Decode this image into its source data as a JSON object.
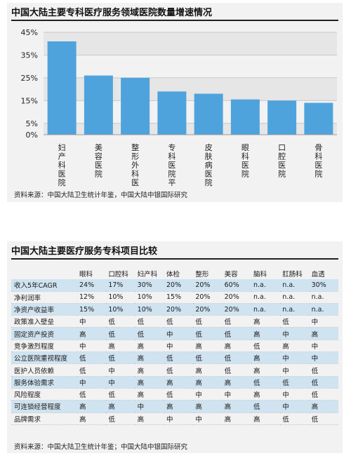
{
  "chart_section": {
    "title": "中国大陆主要专科医疗服务领域医院数量增速情况",
    "source": "资料来源：中国大陆卫生统计年鉴，中国大陆中银国际研究"
  },
  "chart_data": {
    "type": "bar",
    "title": "中国大陆主要专科医疗服务领域医院数量增速情况",
    "categories": [
      "妇产科医院",
      "美容医院",
      "整形外科医院",
      "专科医院平均",
      "皮肤病医院",
      "眼科医院",
      "口腔医院",
      "骨科医院"
    ],
    "values": [
      41,
      26,
      25,
      19,
      18,
      15.5,
      15,
      14
    ],
    "ylim": [
      0,
      45
    ],
    "yticks": [
      0,
      5,
      15,
      25,
      35,
      45
    ],
    "ytick_labels": [
      "0%",
      "5%",
      "15%",
      "25%",
      "35%",
      "45%"
    ],
    "xlabel": "",
    "ylabel": "",
    "bar_color": "#4fa3dd",
    "band_color": "#e6e6e6"
  },
  "table_section": {
    "title": "中国大陆主要医疗服务专科项目比较",
    "source": "资料来源：中国大陆卫生统计年鉴；中国大陆中银国际研究",
    "columns": [
      "眼科",
      "口腔科",
      "妇产科",
      "体检",
      "整形",
      "美容",
      "脑科",
      "肛肠科",
      "血透"
    ],
    "rows": [
      {
        "label": "收入5年CAGR",
        "values": [
          "24%",
          "17%",
          "30%",
          "20%",
          "20%",
          "60%",
          "n.a.",
          "n.a.",
          "30%"
        ]
      },
      {
        "label": "净利润率",
        "values": [
          "12%",
          "10%",
          "10%",
          "15%",
          "20%",
          "20%",
          "n.a.",
          "n.a.",
          "n.a."
        ]
      },
      {
        "label": "净资产收益率",
        "values": [
          "15%",
          "10%",
          "10%",
          "20%",
          "20%",
          "20%",
          "n.a.",
          "n.a.",
          "n.a."
        ]
      },
      {
        "label": "政策准入壁垒",
        "values": [
          "中",
          "低",
          "低",
          "低",
          "低",
          "低",
          "高",
          "低",
          "中"
        ]
      },
      {
        "label": "固定资产投资",
        "values": [
          "高",
          "低",
          "低",
          "中",
          "低",
          "低",
          "高",
          "中",
          "高"
        ]
      },
      {
        "label": "竞争激烈程度",
        "values": [
          "中",
          "高",
          "高",
          "中",
          "高",
          "高",
          "低",
          "高",
          "中"
        ]
      },
      {
        "label": "公立医院重视程度",
        "values": [
          "低",
          "低",
          "高",
          "低",
          "低",
          "低",
          "高",
          "中",
          "中"
        ]
      },
      {
        "label": "医护人员依赖",
        "values": [
          "低",
          "中",
          "高",
          "低",
          "高",
          "低",
          "高",
          "中",
          "低"
        ]
      },
      {
        "label": "服务体验需求",
        "values": [
          "中",
          "中",
          "高",
          "高",
          "高",
          "高",
          "低",
          "低",
          "低"
        ]
      },
      {
        "label": "风险程度",
        "values": [
          "低",
          "低",
          "高",
          "低",
          "中",
          "中",
          "高",
          "中",
          "低"
        ]
      },
      {
        "label": "可连锁经营程度",
        "values": [
          "高",
          "高",
          "中",
          "高",
          "高",
          "高",
          "低",
          "中",
          "高"
        ]
      },
      {
        "label": "品牌需求",
        "values": [
          "高",
          "低",
          "高",
          "中",
          "中",
          "高",
          "高",
          "低",
          "低"
        ]
      }
    ]
  }
}
